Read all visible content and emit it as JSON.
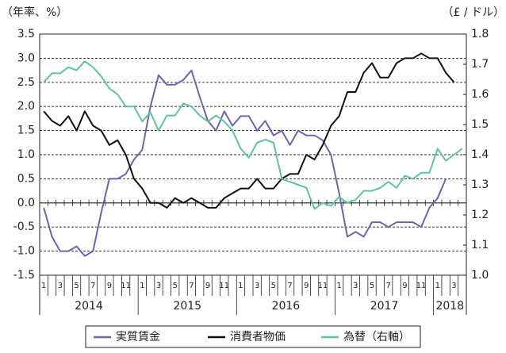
{
  "chart_data": {
    "type": "line",
    "y_label": "（年率、%）",
    "y2_label": "（£ / ドル）",
    "categories": [
      "1",
      null,
      "3",
      null,
      "5",
      null,
      "7",
      null,
      "9",
      null,
      "11",
      null,
      "1",
      null,
      "3",
      null,
      "5",
      null,
      "7",
      null,
      "9",
      null,
      "11",
      null,
      "1",
      null,
      "3",
      null,
      "5",
      null,
      "7",
      null,
      "9",
      null,
      "11",
      null,
      "1",
      null,
      "3",
      null,
      "5",
      null,
      "7",
      null,
      "9",
      null,
      "11",
      null,
      "1",
      null,
      "3",
      null
    ],
    "year_labels": [
      "2014",
      "2015",
      "2016",
      "2017",
      "2018"
    ],
    "series": [
      {
        "name": "実質賃金",
        "color": "#6d64a8",
        "values": [
          -0.1,
          -0.7,
          -1.0,
          -1.0,
          -0.9,
          -1.1,
          -1.0,
          -0.2,
          0.5,
          0.5,
          0.6,
          0.9,
          1.1,
          2.0,
          2.65,
          2.45,
          2.45,
          2.55,
          2.75,
          2.2,
          1.7,
          1.5,
          1.9,
          1.6,
          1.8,
          1.8,
          1.5,
          1.7,
          1.4,
          1.5,
          1.2,
          1.5,
          1.4,
          1.4,
          1.3,
          1.0,
          0.2,
          -0.7,
          -0.6,
          -0.7,
          -0.4,
          -0.4,
          -0.5,
          -0.4,
          -0.4,
          -0.4,
          -0.5,
          -0.1,
          0.1,
          0.5,
          null,
          null
        ]
      },
      {
        "name": "消費者物価",
        "color": "#111111",
        "values": [
          1.9,
          1.7,
          1.6,
          1.8,
          1.5,
          1.9,
          1.6,
          1.5,
          1.2,
          1.3,
          1.0,
          0.5,
          0.3,
          0.0,
          0.0,
          -0.1,
          0.1,
          0.0,
          0.1,
          0.0,
          -0.1,
          -0.1,
          0.1,
          0.2,
          0.3,
          0.3,
          0.5,
          0.3,
          0.3,
          0.5,
          0.6,
          0.6,
          1.0,
          0.9,
          1.2,
          1.6,
          1.8,
          2.3,
          2.3,
          2.7,
          2.9,
          2.6,
          2.6,
          2.9,
          3.0,
          3.0,
          3.1,
          3.0,
          3.0,
          2.7,
          2.5,
          null
        ]
      },
      {
        "name": "為替（右軸）",
        "color": "#5fc2a2",
        "axis": "y2",
        "values": [
          1.64,
          1.67,
          1.67,
          1.69,
          1.68,
          1.71,
          1.69,
          1.66,
          1.62,
          1.6,
          1.56,
          1.56,
          1.51,
          1.54,
          1.48,
          1.53,
          1.53,
          1.57,
          1.56,
          1.53,
          1.51,
          1.53,
          1.51,
          1.48,
          1.42,
          1.39,
          1.44,
          1.45,
          1.44,
          1.32,
          1.31,
          1.3,
          1.29,
          1.22,
          1.24,
          1.23,
          1.26,
          1.24,
          1.25,
          1.28,
          1.28,
          1.29,
          1.31,
          1.29,
          1.33,
          1.32,
          1.34,
          1.34,
          1.42,
          1.38,
          1.4,
          1.42
        ]
      }
    ],
    "ylim": [
      -1.5,
      3.5
    ],
    "yticks": [
      3.5,
      {
        "value": 3,
        "label": "3.0"
      },
      2.5,
      {
        "value": 2,
        "label": "2.0"
      },
      1.5,
      {
        "value": 1,
        "label": "1.0"
      },
      0.5,
      {
        "value": 0,
        "label": "0.0"
      },
      -0.5,
      {
        "value": -1,
        "label": "-1.0"
      },
      -1.5
    ],
    "y2lim": [
      1.0,
      1.8
    ],
    "y2ticks": [
      1.8,
      1.7,
      1.6,
      1.5,
      1.4,
      1.3,
      1.2,
      1.1,
      {
        "value": 1,
        "label": "1.0"
      }
    ],
    "grid": true,
    "legend": "bottom"
  }
}
